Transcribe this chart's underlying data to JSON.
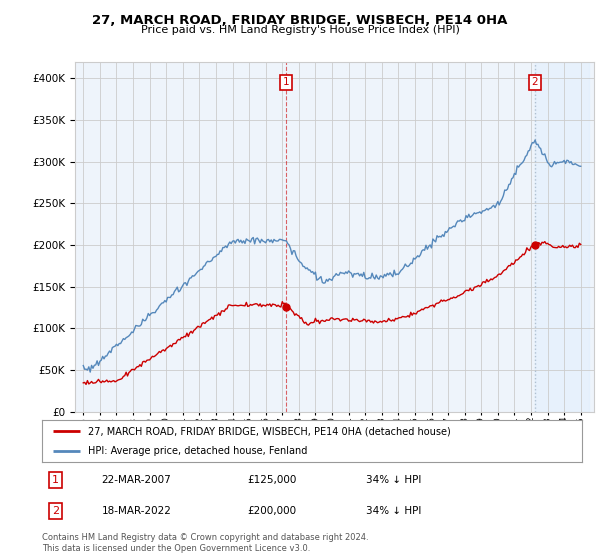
{
  "title": "27, MARCH ROAD, FRIDAY BRIDGE, WISBECH, PE14 0HA",
  "subtitle": "Price paid vs. HM Land Registry's House Price Index (HPI)",
  "red_label": "27, MARCH ROAD, FRIDAY BRIDGE, WISBECH, PE14 0HA (detached house)",
  "blue_label": "HPI: Average price, detached house, Fenland",
  "marker1_date": "22-MAR-2007",
  "marker1_value": 125000,
  "marker1_hpi": "34% ↓ HPI",
  "marker2_date": "18-MAR-2022",
  "marker2_value": 200000,
  "marker2_hpi": "34% ↓ HPI",
  "footer": "Contains HM Land Registry data © Crown copyright and database right 2024.\nThis data is licensed under the Open Government Licence v3.0.",
  "ylim": [
    0,
    420000
  ],
  "title_color": "#000000",
  "red_color": "#cc0000",
  "blue_color": "#5588bb",
  "marker_color": "#cc0000",
  "vline2_color": "#aabbcc",
  "grid_color": "#cccccc",
  "plot_bg": "#eef4fb",
  "shade_color": "#ddeeff",
  "background_color": "#ffffff"
}
